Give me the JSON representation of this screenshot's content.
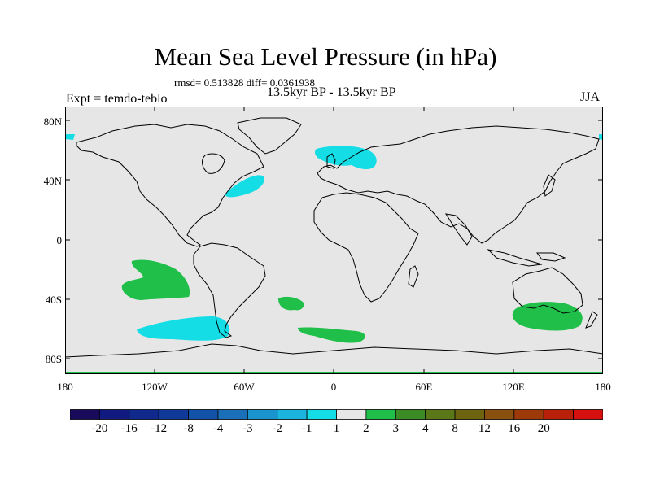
{
  "title": "Mean Sea Level Pressure (in hPa)",
  "stats": "rmsd= 0.513828 diff= 0.0361938",
  "period": "13.5kyr BP - 13.5kyr BP",
  "experiment": "Expt = temdo-teblo",
  "season": "JJA",
  "lat_ticks": [
    "80N",
    "40N",
    "0",
    "40S",
    "80S"
  ],
  "lon_ticks": [
    "180",
    "120W",
    "60W",
    "0",
    "60E",
    "120E",
    "180"
  ],
  "colorbar": {
    "labels": [
      "-20",
      "-16",
      "-12",
      "-8",
      "-4",
      "-3",
      "-2",
      "-1",
      "1",
      "2",
      "3",
      "4",
      "8",
      "12",
      "16",
      "20"
    ],
    "colors": [
      "#1a0a5c",
      "#111a80",
      "#0f2a8c",
      "#103a9a",
      "#1252a8",
      "#1a6fb8",
      "#1a94cc",
      "#1ab4de",
      "#14dde6",
      "#e6e6e6",
      "#1fbf4a",
      "#3c8c26",
      "#5a7818",
      "#6e6410",
      "#8a5010",
      "#9e3a0a",
      "#b8200a",
      "#d60f0f"
    ]
  },
  "map": {
    "background": "#e6e6e6",
    "negative_color": "#14dde6",
    "positive_color": "#1fbf4a",
    "anomalies": [
      {
        "name": "north-atlantic",
        "sign": "negative"
      },
      {
        "name": "northern-europe",
        "sign": "negative"
      },
      {
        "name": "arctic-west",
        "sign": "negative"
      },
      {
        "name": "arctic-east",
        "sign": "negative"
      },
      {
        "name": "south-pacific-east",
        "sign": "positive"
      },
      {
        "name": "southern-ocean-pacific",
        "sign": "negative"
      },
      {
        "name": "south-atlantic",
        "sign": "positive"
      },
      {
        "name": "southern-ocean-atlantic",
        "sign": "positive"
      },
      {
        "name": "south-of-australia",
        "sign": "positive"
      }
    ]
  }
}
